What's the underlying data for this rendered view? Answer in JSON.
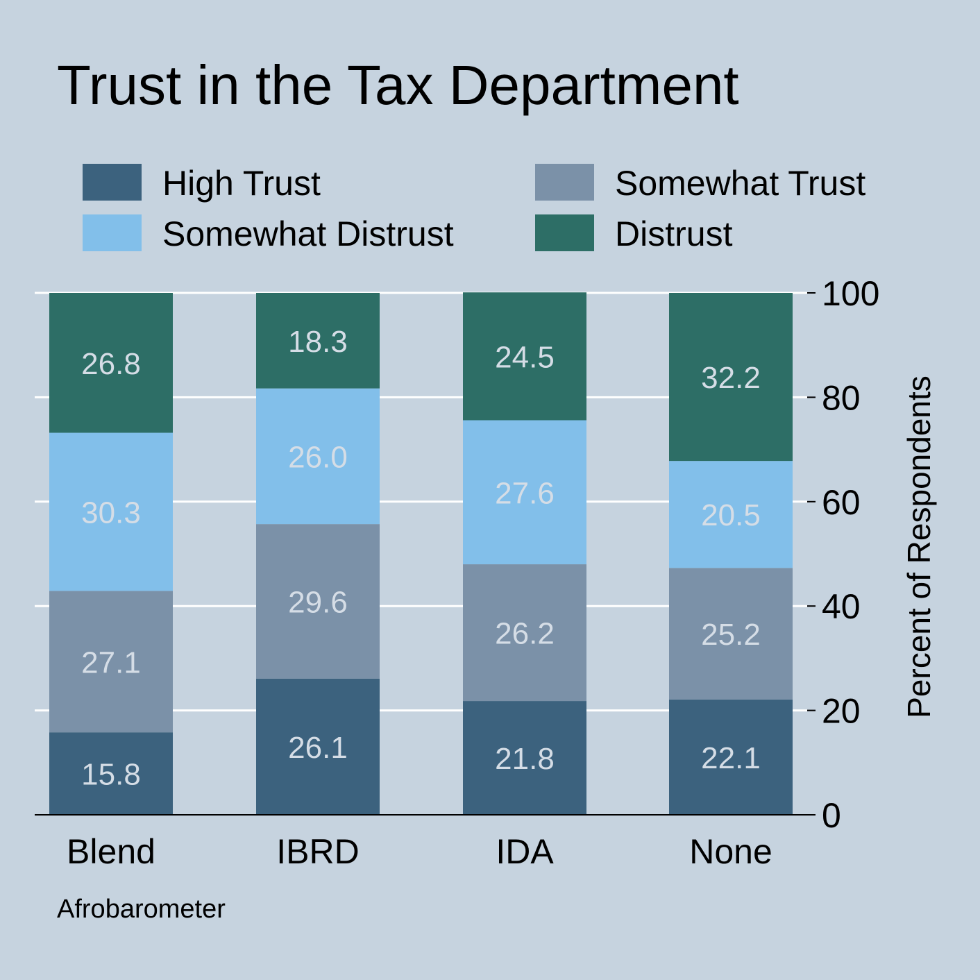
{
  "chart_data": {
    "type": "bar",
    "stacked": true,
    "title": "Trust in the Tax Department",
    "ylabel": "Percent of Respondents",
    "y_axis_position": "right",
    "ylim": [
      0,
      100
    ],
    "yticks": [
      0,
      20,
      40,
      60,
      80,
      100
    ],
    "grid": "horizontal",
    "legend_position": "top",
    "categories": [
      "Blend",
      "IBRD",
      "IDA",
      "None"
    ],
    "series": [
      {
        "name": "High Trust",
        "color": "#3c627e",
        "values": [
          15.8,
          26.1,
          21.8,
          22.1
        ]
      },
      {
        "name": "Somewhat Trust",
        "color": "#7b91a8",
        "values": [
          27.1,
          29.6,
          26.2,
          25.2
        ]
      },
      {
        "name": "Somewhat Distrust",
        "color": "#82bfea",
        "values": [
          30.3,
          26.0,
          27.6,
          20.5
        ]
      },
      {
        "name": "Distrust",
        "color": "#2d6e66",
        "values": [
          26.8,
          18.3,
          24.5,
          32.2
        ]
      }
    ],
    "source": "Afrobarometer"
  }
}
